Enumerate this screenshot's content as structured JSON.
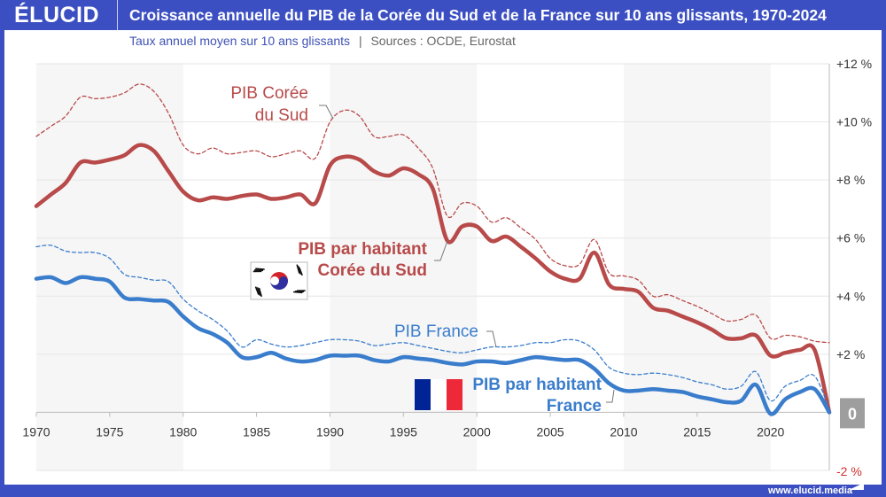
{
  "header": {
    "logo": "ÉLUCID",
    "title": "Croissance annuelle du PIB de la Corée du Sud et de la France sur 10 ans glissants, 1970-2024"
  },
  "subtitle": {
    "text": "Taux annuel moyen sur 10 ans glissants",
    "separator": "|",
    "sources": "Sources : OCDE, Eurostat"
  },
  "footer": {
    "url": "www.elucid.media"
  },
  "chart_data": {
    "type": "line",
    "title": "Croissance annuelle du PIB de la Corée du Sud et de la France sur 10 ans glissants, 1970-2024",
    "x": [
      1970,
      1971,
      1972,
      1973,
      1974,
      1975,
      1976,
      1977,
      1978,
      1979,
      1980,
      1981,
      1982,
      1983,
      1984,
      1985,
      1986,
      1987,
      1988,
      1989,
      1990,
      1991,
      1992,
      1993,
      1994,
      1995,
      1996,
      1997,
      1998,
      1999,
      2000,
      2001,
      2002,
      2003,
      2004,
      2005,
      2006,
      2007,
      2008,
      2009,
      2010,
      2011,
      2012,
      2013,
      2014,
      2015,
      2016,
      2017,
      2018,
      2019,
      2020,
      2021,
      2022,
      2023,
      2024
    ],
    "xlim": [
      1970,
      2024
    ],
    "xticks": [
      "1970",
      "1975",
      "1980",
      "1985",
      "1990",
      "1995",
      "2000",
      "2005",
      "2010",
      "2015",
      "2020"
    ],
    "ylim": [
      -2,
      12
    ],
    "yticks": [
      "+12 %",
      "+10 %",
      "+8 %",
      "+6 %",
      "+4 %",
      "+2 %",
      "0",
      "-2 %"
    ],
    "y_axis_position": "right",
    "grid": true,
    "series": [
      {
        "name": "PIB Corée du Sud",
        "style": "dashed",
        "color": "#b84a4a",
        "values": [
          9.5,
          9.85,
          10.2,
          10.85,
          10.8,
          10.85,
          11.0,
          11.3,
          11.05,
          10.3,
          9.2,
          8.9,
          9.1,
          8.9,
          8.95,
          9.0,
          8.8,
          8.9,
          9.0,
          8.75,
          10.0,
          10.4,
          10.2,
          9.5,
          9.5,
          9.55,
          9.1,
          8.4,
          6.75,
          7.2,
          7.1,
          6.55,
          6.7,
          6.35,
          5.95,
          5.3,
          5.05,
          5.1,
          5.95,
          4.8,
          4.7,
          4.55,
          4.0,
          4.05,
          3.85,
          3.65,
          3.4,
          3.15,
          3.2,
          3.35,
          2.55,
          2.65,
          2.6,
          2.45,
          2.4
        ]
      },
      {
        "name": "PIB par habitant Corée du Sud",
        "style": "solid",
        "color": "#b84a4a",
        "values": [
          7.1,
          7.5,
          7.9,
          8.6,
          8.6,
          8.7,
          8.85,
          9.2,
          9.0,
          8.3,
          7.6,
          7.3,
          7.4,
          7.35,
          7.45,
          7.5,
          7.35,
          7.4,
          7.5,
          7.2,
          8.5,
          8.8,
          8.7,
          8.3,
          8.15,
          8.4,
          8.2,
          7.7,
          5.9,
          6.4,
          6.4,
          5.9,
          6.05,
          5.7,
          5.3,
          4.85,
          4.6,
          4.6,
          5.5,
          4.4,
          4.25,
          4.15,
          3.6,
          3.5,
          3.3,
          3.1,
          2.85,
          2.55,
          2.55,
          2.65,
          1.95,
          2.05,
          2.15,
          2.15,
          0.0
        ]
      },
      {
        "name": "PIB France",
        "style": "dashed",
        "color": "#3a7dcc",
        "values": [
          5.7,
          5.75,
          5.55,
          5.5,
          5.5,
          5.3,
          4.75,
          4.65,
          4.55,
          4.5,
          3.9,
          3.5,
          3.2,
          2.8,
          2.25,
          2.5,
          2.35,
          2.25,
          2.3,
          2.4,
          2.5,
          2.5,
          2.45,
          2.3,
          2.35,
          2.4,
          2.3,
          2.2,
          2.1,
          2.05,
          2.15,
          2.25,
          2.25,
          2.3,
          2.4,
          2.4,
          2.5,
          2.45,
          2.15,
          1.55,
          1.35,
          1.3,
          1.35,
          1.3,
          1.2,
          1.05,
          0.95,
          0.8,
          0.9,
          1.4,
          0.4,
          0.9,
          1.1,
          1.25,
          0.1
        ]
      },
      {
        "name": "PIB par habitant France",
        "style": "solid",
        "color": "#3a7dcc",
        "values": [
          4.6,
          4.65,
          4.45,
          4.65,
          4.6,
          4.5,
          3.95,
          3.9,
          3.85,
          3.8,
          3.3,
          2.9,
          2.7,
          2.4,
          1.9,
          1.9,
          2.05,
          1.85,
          1.75,
          1.8,
          1.95,
          1.95,
          1.95,
          1.8,
          1.75,
          1.9,
          1.85,
          1.8,
          1.7,
          1.65,
          1.75,
          1.75,
          1.7,
          1.8,
          1.9,
          1.85,
          1.8,
          1.8,
          1.5,
          1.0,
          0.75,
          0.75,
          0.8,
          0.75,
          0.7,
          0.55,
          0.45,
          0.35,
          0.4,
          0.95,
          -0.05,
          0.45,
          0.7,
          0.8,
          0.0
        ]
      }
    ],
    "annotations": {
      "kr_gdp": [
        "PIB Corée",
        "du Sud"
      ],
      "kr_pc": [
        "PIB par habitant",
        "Corée du Sud"
      ],
      "fr_gdp": [
        "PIB France"
      ],
      "fr_pc": [
        "PIB par habitant",
        "France"
      ]
    },
    "shaded_bands": [
      [
        1970,
        1980
      ],
      [
        1990,
        2000
      ],
      [
        2010,
        2020
      ]
    ],
    "flags": [
      "south-korea-flag",
      "france-flag"
    ]
  }
}
